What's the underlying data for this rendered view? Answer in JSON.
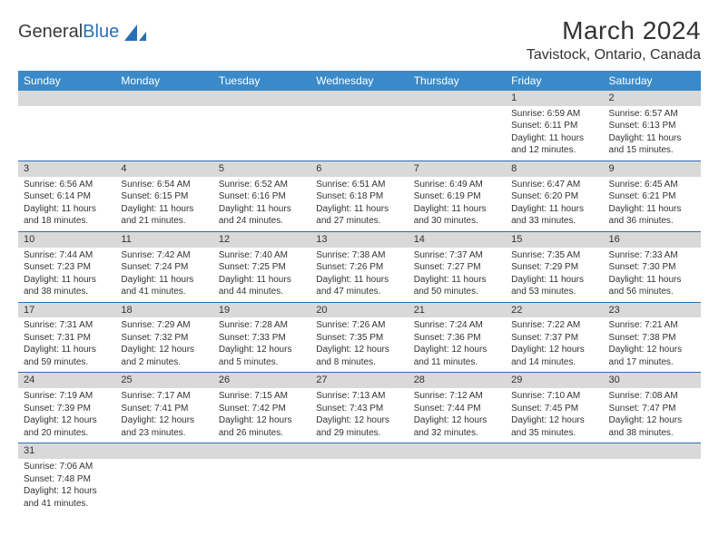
{
  "logo": {
    "text_general": "General",
    "text_blue": "Blue",
    "shape_color": "#2a6fb5"
  },
  "title": "March 2024",
  "location": "Tavistock, Ontario, Canada",
  "colors": {
    "header_bg": "#3a8ac9",
    "header_text": "#ffffff",
    "daynum_bg": "#d9d9d9",
    "row_border": "#2a6fb5",
    "body_text": "#333333"
  },
  "typography": {
    "title_fontsize": 28,
    "location_fontsize": 16,
    "weekday_fontsize": 12,
    "daynum_fontsize": 11,
    "cell_fontsize": 10
  },
  "weekdays": [
    "Sunday",
    "Monday",
    "Tuesday",
    "Wednesday",
    "Thursday",
    "Friday",
    "Saturday"
  ],
  "weeks": [
    [
      null,
      null,
      null,
      null,
      null,
      {
        "n": "1",
        "sunrise": "Sunrise: 6:59 AM",
        "sunset": "Sunset: 6:11 PM",
        "daylight": "Daylight: 11 hours and 12 minutes."
      },
      {
        "n": "2",
        "sunrise": "Sunrise: 6:57 AM",
        "sunset": "Sunset: 6:13 PM",
        "daylight": "Daylight: 11 hours and 15 minutes."
      }
    ],
    [
      {
        "n": "3",
        "sunrise": "Sunrise: 6:56 AM",
        "sunset": "Sunset: 6:14 PM",
        "daylight": "Daylight: 11 hours and 18 minutes."
      },
      {
        "n": "4",
        "sunrise": "Sunrise: 6:54 AM",
        "sunset": "Sunset: 6:15 PM",
        "daylight": "Daylight: 11 hours and 21 minutes."
      },
      {
        "n": "5",
        "sunrise": "Sunrise: 6:52 AM",
        "sunset": "Sunset: 6:16 PM",
        "daylight": "Daylight: 11 hours and 24 minutes."
      },
      {
        "n": "6",
        "sunrise": "Sunrise: 6:51 AM",
        "sunset": "Sunset: 6:18 PM",
        "daylight": "Daylight: 11 hours and 27 minutes."
      },
      {
        "n": "7",
        "sunrise": "Sunrise: 6:49 AM",
        "sunset": "Sunset: 6:19 PM",
        "daylight": "Daylight: 11 hours and 30 minutes."
      },
      {
        "n": "8",
        "sunrise": "Sunrise: 6:47 AM",
        "sunset": "Sunset: 6:20 PM",
        "daylight": "Daylight: 11 hours and 33 minutes."
      },
      {
        "n": "9",
        "sunrise": "Sunrise: 6:45 AM",
        "sunset": "Sunset: 6:21 PM",
        "daylight": "Daylight: 11 hours and 36 minutes."
      }
    ],
    [
      {
        "n": "10",
        "sunrise": "Sunrise: 7:44 AM",
        "sunset": "Sunset: 7:23 PM",
        "daylight": "Daylight: 11 hours and 38 minutes."
      },
      {
        "n": "11",
        "sunrise": "Sunrise: 7:42 AM",
        "sunset": "Sunset: 7:24 PM",
        "daylight": "Daylight: 11 hours and 41 minutes."
      },
      {
        "n": "12",
        "sunrise": "Sunrise: 7:40 AM",
        "sunset": "Sunset: 7:25 PM",
        "daylight": "Daylight: 11 hours and 44 minutes."
      },
      {
        "n": "13",
        "sunrise": "Sunrise: 7:38 AM",
        "sunset": "Sunset: 7:26 PM",
        "daylight": "Daylight: 11 hours and 47 minutes."
      },
      {
        "n": "14",
        "sunrise": "Sunrise: 7:37 AM",
        "sunset": "Sunset: 7:27 PM",
        "daylight": "Daylight: 11 hours and 50 minutes."
      },
      {
        "n": "15",
        "sunrise": "Sunrise: 7:35 AM",
        "sunset": "Sunset: 7:29 PM",
        "daylight": "Daylight: 11 hours and 53 minutes."
      },
      {
        "n": "16",
        "sunrise": "Sunrise: 7:33 AM",
        "sunset": "Sunset: 7:30 PM",
        "daylight": "Daylight: 11 hours and 56 minutes."
      }
    ],
    [
      {
        "n": "17",
        "sunrise": "Sunrise: 7:31 AM",
        "sunset": "Sunset: 7:31 PM",
        "daylight": "Daylight: 11 hours and 59 minutes."
      },
      {
        "n": "18",
        "sunrise": "Sunrise: 7:29 AM",
        "sunset": "Sunset: 7:32 PM",
        "daylight": "Daylight: 12 hours and 2 minutes."
      },
      {
        "n": "19",
        "sunrise": "Sunrise: 7:28 AM",
        "sunset": "Sunset: 7:33 PM",
        "daylight": "Daylight: 12 hours and 5 minutes."
      },
      {
        "n": "20",
        "sunrise": "Sunrise: 7:26 AM",
        "sunset": "Sunset: 7:35 PM",
        "daylight": "Daylight: 12 hours and 8 minutes."
      },
      {
        "n": "21",
        "sunrise": "Sunrise: 7:24 AM",
        "sunset": "Sunset: 7:36 PM",
        "daylight": "Daylight: 12 hours and 11 minutes."
      },
      {
        "n": "22",
        "sunrise": "Sunrise: 7:22 AM",
        "sunset": "Sunset: 7:37 PM",
        "daylight": "Daylight: 12 hours and 14 minutes."
      },
      {
        "n": "23",
        "sunrise": "Sunrise: 7:21 AM",
        "sunset": "Sunset: 7:38 PM",
        "daylight": "Daylight: 12 hours and 17 minutes."
      }
    ],
    [
      {
        "n": "24",
        "sunrise": "Sunrise: 7:19 AM",
        "sunset": "Sunset: 7:39 PM",
        "daylight": "Daylight: 12 hours and 20 minutes."
      },
      {
        "n": "25",
        "sunrise": "Sunrise: 7:17 AM",
        "sunset": "Sunset: 7:41 PM",
        "daylight": "Daylight: 12 hours and 23 minutes."
      },
      {
        "n": "26",
        "sunrise": "Sunrise: 7:15 AM",
        "sunset": "Sunset: 7:42 PM",
        "daylight": "Daylight: 12 hours and 26 minutes."
      },
      {
        "n": "27",
        "sunrise": "Sunrise: 7:13 AM",
        "sunset": "Sunset: 7:43 PM",
        "daylight": "Daylight: 12 hours and 29 minutes."
      },
      {
        "n": "28",
        "sunrise": "Sunrise: 7:12 AM",
        "sunset": "Sunset: 7:44 PM",
        "daylight": "Daylight: 12 hours and 32 minutes."
      },
      {
        "n": "29",
        "sunrise": "Sunrise: 7:10 AM",
        "sunset": "Sunset: 7:45 PM",
        "daylight": "Daylight: 12 hours and 35 minutes."
      },
      {
        "n": "30",
        "sunrise": "Sunrise: 7:08 AM",
        "sunset": "Sunset: 7:47 PM",
        "daylight": "Daylight: 12 hours and 38 minutes."
      }
    ],
    [
      {
        "n": "31",
        "sunrise": "Sunrise: 7:06 AM",
        "sunset": "Sunset: 7:48 PM",
        "daylight": "Daylight: 12 hours and 41 minutes."
      },
      null,
      null,
      null,
      null,
      null,
      null
    ]
  ]
}
